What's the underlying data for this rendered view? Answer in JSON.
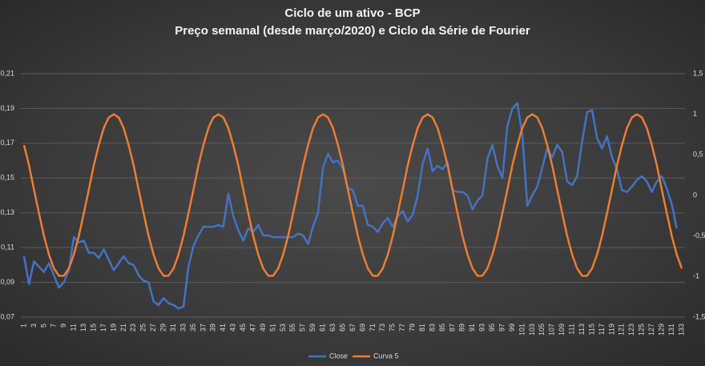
{
  "chart_data": {
    "type": "line",
    "title": "Ciclo de um ativo - BCP",
    "subtitle": "Preço semanal (desde março/2020) e Ciclo da Série de Fourier",
    "categories": [
      1,
      null,
      3,
      null,
      5,
      null,
      7,
      null,
      9,
      null,
      11,
      null,
      13,
      null,
      15,
      null,
      17,
      null,
      19,
      null,
      21,
      null,
      23,
      null,
      25,
      null,
      27,
      null,
      29,
      null,
      31,
      null,
      33,
      null,
      35,
      null,
      37,
      null,
      39,
      null,
      41,
      null,
      43,
      null,
      45,
      null,
      47,
      null,
      49,
      null,
      51,
      null,
      53,
      null,
      55,
      null,
      57,
      null,
      59,
      null,
      61,
      null,
      63,
      null,
      65,
      null,
      67,
      null,
      69,
      null,
      71,
      null,
      73,
      null,
      75,
      null,
      77,
      null,
      79,
      null,
      81,
      null,
      83,
      null,
      85,
      null,
      87,
      null,
      89,
      null,
      91,
      null,
      93,
      null,
      95,
      null,
      97,
      null,
      99,
      null,
      101,
      null,
      103,
      null,
      105,
      null,
      107,
      null,
      109,
      null,
      111,
      null,
      113,
      null,
      115,
      null,
      117,
      null,
      119,
      null,
      121,
      null,
      123,
      null,
      125,
      null,
      127,
      null,
      129,
      null,
      131,
      null,
      133
    ],
    "series": [
      {
        "name": "Close",
        "color": "#4472c4",
        "axis": "y",
        "values": [
          0.105,
          0.089,
          0.102,
          0.099,
          0.096,
          0.101,
          0.094,
          0.087,
          0.09,
          0.097,
          0.116,
          0.113,
          0.114,
          0.107,
          0.107,
          0.104,
          0.109,
          0.103,
          0.097,
          0.101,
          0.105,
          0.101,
          0.1,
          0.094,
          0.091,
          0.09,
          0.079,
          0.077,
          0.081,
          0.078,
          0.077,
          0.075,
          0.076,
          0.099,
          0.111,
          0.117,
          0.122,
          0.122,
          0.122,
          0.123,
          0.122,
          0.141,
          0.128,
          0.12,
          0.114,
          0.121,
          0.119,
          0.123,
          0.117,
          0.117,
          0.116,
          0.116,
          0.116,
          0.116,
          0.116,
          0.118,
          0.117,
          0.112,
          0.122,
          0.13,
          0.156,
          0.164,
          0.159,
          0.16,
          0.155,
          0.144,
          0.143,
          0.134,
          0.134,
          0.123,
          0.122,
          0.119,
          0.124,
          0.127,
          0.122,
          0.128,
          0.131,
          0.125,
          0.129,
          0.14,
          0.158,
          0.167,
          0.154,
          0.157,
          0.155,
          0.159,
          0.143,
          0.142,
          0.142,
          0.14,
          0.132,
          0.137,
          0.14,
          0.161,
          0.169,
          0.157,
          0.15,
          0.18,
          0.19,
          0.193,
          0.175,
          0.134,
          0.14,
          0.145,
          0.156,
          0.167,
          0.162,
          0.169,
          0.165,
          0.148,
          0.146,
          0.151,
          0.171,
          0.188,
          0.189,
          0.173,
          0.167,
          0.174,
          0.162,
          0.155,
          0.143,
          0.142,
          0.145,
          0.149,
          0.151,
          0.148,
          0.142,
          0.148,
          0.151,
          0.144,
          0.135,
          0.121,
          null
        ]
      },
      {
        "name": "Curva 5",
        "color": "#ed7d31",
        "axis": "y2",
        "values": [
          0.62,
          0.37,
          0.07,
          -0.22,
          -0.5,
          -0.73,
          -0.9,
          -0.99,
          -0.99,
          -0.9,
          -0.73,
          -0.5,
          -0.22,
          0.07,
          0.37,
          0.62,
          0.83,
          0.96,
          1,
          0.96,
          0.83,
          0.62,
          0.37,
          0.07,
          -0.22,
          -0.5,
          -0.73,
          -0.9,
          -0.99,
          -0.99,
          -0.9,
          -0.73,
          -0.5,
          -0.22,
          0.07,
          0.37,
          0.62,
          0.83,
          0.96,
          1,
          0.96,
          0.83,
          0.62,
          0.37,
          0.07,
          -0.22,
          -0.5,
          -0.73,
          -0.9,
          -0.99,
          -0.99,
          -0.9,
          -0.73,
          -0.5,
          -0.22,
          0.07,
          0.37,
          0.62,
          0.83,
          0.96,
          1,
          0.96,
          0.83,
          0.62,
          0.37,
          0.07,
          -0.22,
          -0.5,
          -0.73,
          -0.9,
          -0.99,
          -0.99,
          -0.9,
          -0.73,
          -0.5,
          -0.22,
          0.07,
          0.37,
          0.62,
          0.83,
          0.96,
          1,
          0.96,
          0.83,
          0.62,
          0.37,
          0.07,
          -0.22,
          -0.5,
          -0.73,
          -0.9,
          -0.99,
          -0.99,
          -0.9,
          -0.73,
          -0.5,
          -0.22,
          0.07,
          0.37,
          0.62,
          0.83,
          0.96,
          1,
          0.96,
          0.83,
          0.62,
          0.37,
          0.07,
          -0.22,
          -0.5,
          -0.73,
          -0.9,
          -0.99,
          -0.99,
          -0.9,
          -0.73,
          -0.5,
          -0.22,
          0.07,
          0.37,
          0.62,
          0.83,
          0.96,
          1,
          0.96,
          0.83,
          0.62,
          0.37,
          0.07,
          -0.22,
          -0.5,
          -0.73,
          -0.9
        ]
      }
    ],
    "ylim": [
      0.07,
      0.21
    ],
    "yticks": [
      {
        "value": 0.07,
        "label": "0,07"
      },
      {
        "value": 0.09,
        "label": "0,09"
      },
      {
        "value": 0.11,
        "label": "0,11"
      },
      {
        "value": 0.13,
        "label": "0,13"
      },
      {
        "value": 0.15,
        "label": "0,15"
      },
      {
        "value": 0.17,
        "label": "0,17"
      },
      {
        "value": 0.19,
        "label": "0,19"
      },
      {
        "value": 0.21,
        "label": "0,21"
      }
    ],
    "y2lim": [
      -1.5,
      1.5
    ],
    "y2ticks": [
      {
        "value": -1.5,
        "label": "-1,5"
      },
      -1,
      {
        "value": -0.5,
        "label": "-0,5"
      },
      0,
      {
        "value": 0.5,
        "label": "0,5"
      },
      1,
      {
        "value": 1.5,
        "label": "1,5"
      }
    ],
    "grid": true,
    "legend": "bottom"
  }
}
